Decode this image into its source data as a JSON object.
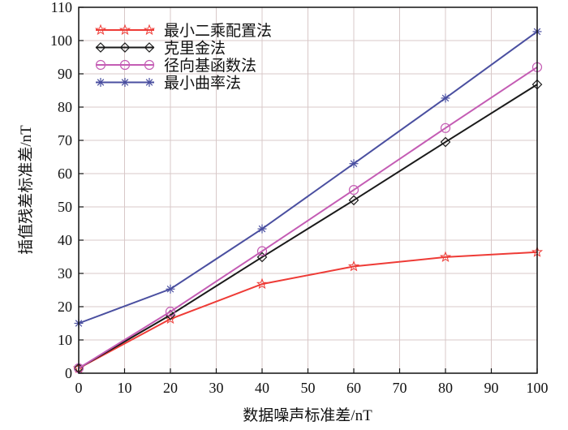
{
  "chart_data": {
    "type": "line",
    "title": "",
    "xlabel": "数据噪声标准差/nT",
    "ylabel": "插值残差标准差/nT",
    "xlim": [
      0,
      100
    ],
    "ylim": [
      0,
      110
    ],
    "xticks": [
      0,
      10,
      20,
      30,
      40,
      50,
      60,
      70,
      80,
      90,
      100
    ],
    "yticks": [
      0,
      10,
      20,
      30,
      40,
      50,
      60,
      70,
      80,
      90,
      100,
      110
    ],
    "grid": true,
    "legend_position": "top-left",
    "x": [
      0,
      20,
      40,
      60,
      80,
      100
    ],
    "series": [
      {
        "name": "最小二乘配置法",
        "color": "#ee3b36",
        "marker": "star",
        "values": [
          1.5,
          16.3,
          26.8,
          32.1,
          34.9,
          36.4
        ]
      },
      {
        "name": "克里金法",
        "color": "#1a1a1a",
        "marker": "diamond",
        "values": [
          1.5,
          17.5,
          34.9,
          52.0,
          69.5,
          86.8
        ]
      },
      {
        "name": "径向基函数法",
        "color": "#c45cb4",
        "marker": "circle",
        "values": [
          1.5,
          18.5,
          36.7,
          55.1,
          73.7,
          92.0
        ]
      },
      {
        "name": "最小曲率法",
        "color": "#4a4fa0",
        "marker": "asterisk",
        "values": [
          15.0,
          25.3,
          43.4,
          63.0,
          82.7,
          102.7
        ]
      }
    ]
  }
}
